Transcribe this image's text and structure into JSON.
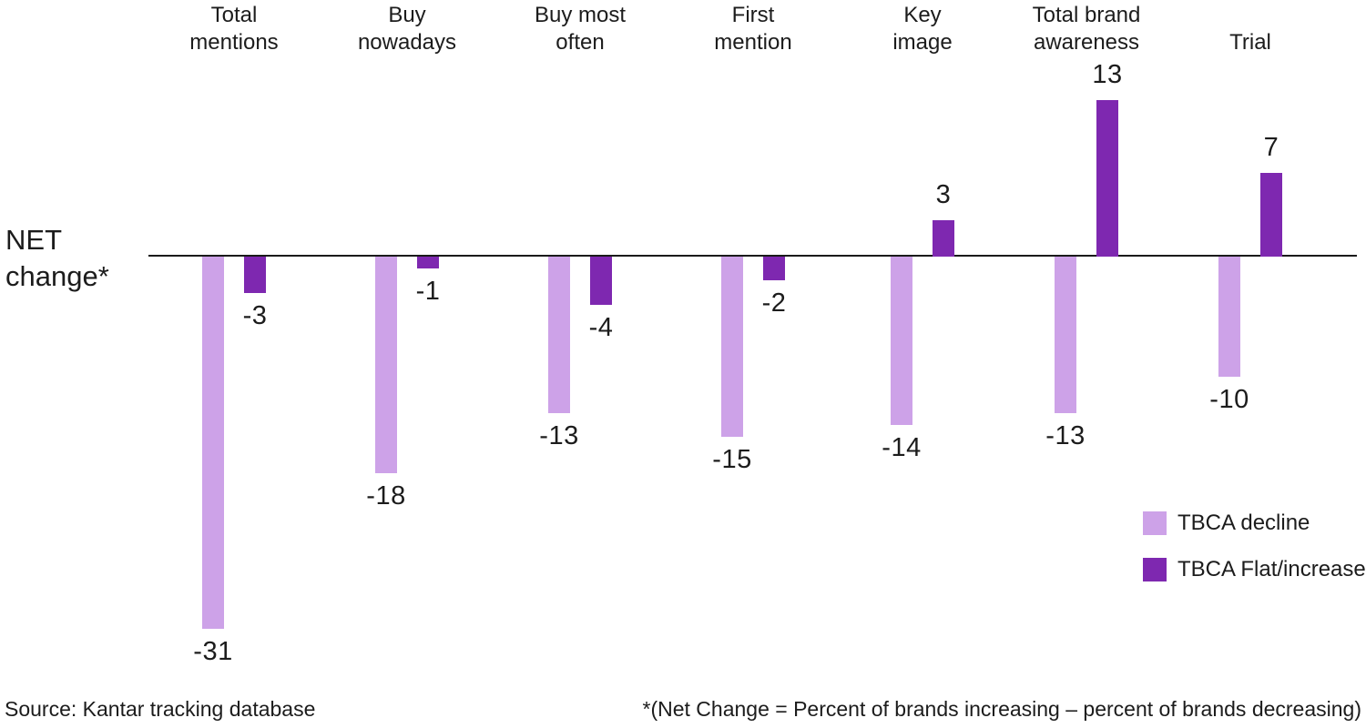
{
  "chart_data": {
    "type": "bar",
    "categories": [
      "Total\nmentions",
      "Buy\nnowadays",
      "Buy most\noften",
      "First\nmention",
      "Key\nimage",
      "Total brand\nawareness",
      "Trial"
    ],
    "series": [
      {
        "name": "TBCA decline",
        "color": "#cda2e8",
        "values": [
          -31,
          -18,
          -13,
          -15,
          -14,
          -13,
          -10
        ]
      },
      {
        "name": "TBCA Flat/increase",
        "color": "#7e28b0",
        "values": [
          -3,
          -1,
          -4,
          -2,
          3,
          13,
          7
        ]
      }
    ],
    "axis_label": "NET change*",
    "ylim": [
      -31,
      13
    ],
    "grid": false,
    "data_labels": true,
    "legend_position": "right-middle",
    "baseline_color": "#1a1a1a"
  },
  "footer": {
    "source": "Source: Kantar tracking database",
    "note": "*(Net Change = Percent of brands increasing – percent of brands decreasing)"
  }
}
